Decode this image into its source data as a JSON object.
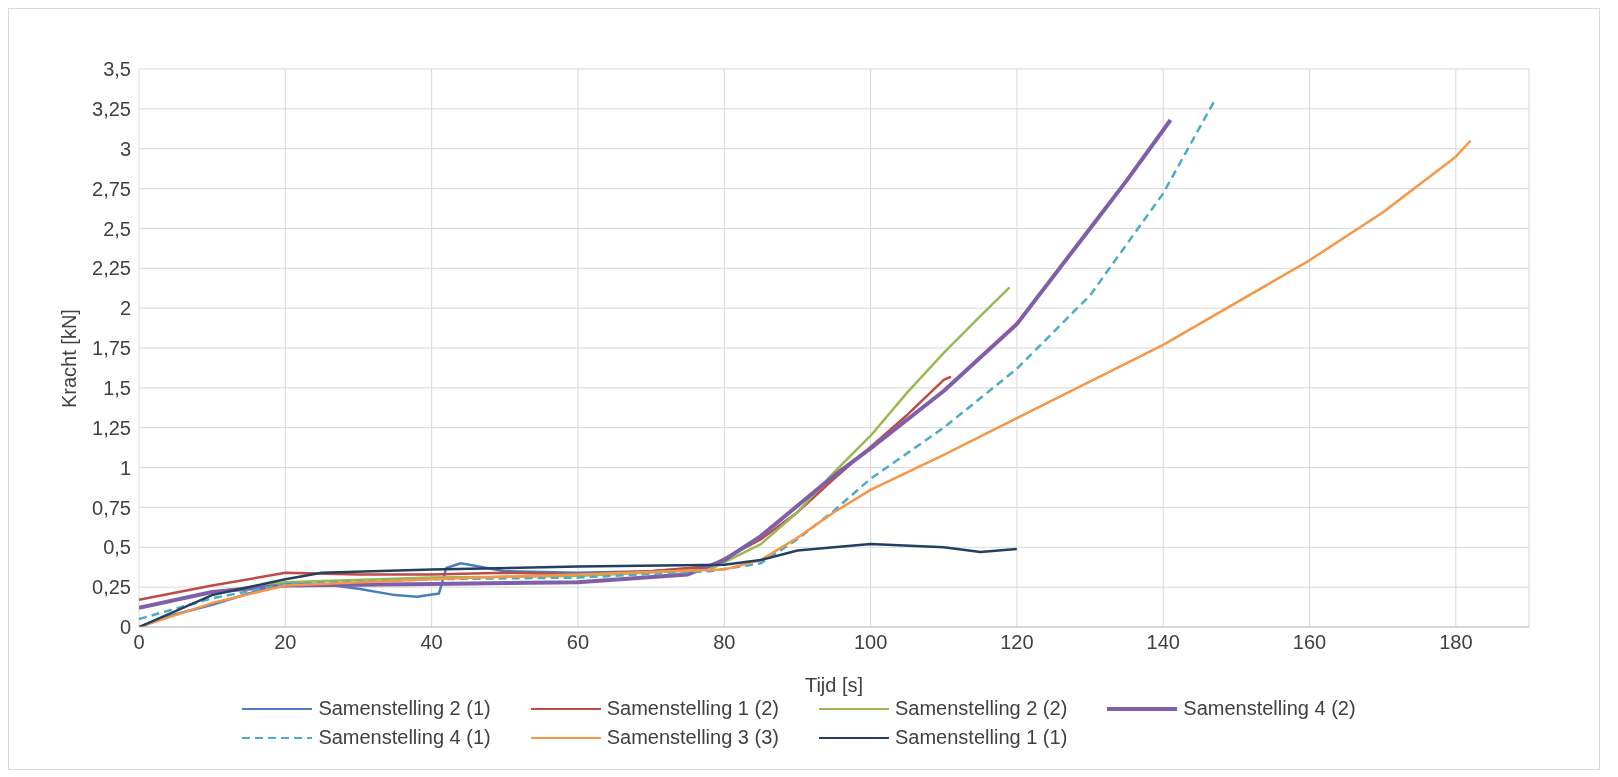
{
  "chart_data": {
    "type": "line",
    "xlabel": "Tijd [s]",
    "ylabel": "Kracht  [kN]",
    "xlim": [
      0,
      190
    ],
    "xticks": [
      0,
      20,
      40,
      60,
      80,
      100,
      120,
      140,
      160,
      180
    ],
    "ylim": [
      0,
      3.5
    ],
    "yticks": [
      0,
      {
        "value": 0.25,
        "label": "0,25"
      },
      {
        "value": 0.5,
        "label": "0,5"
      },
      {
        "value": 0.75,
        "label": "0,75"
      },
      1,
      {
        "value": 1.25,
        "label": "1,25"
      },
      {
        "value": 1.5,
        "label": "1,5"
      },
      {
        "value": 1.75,
        "label": "1,75"
      },
      2,
      {
        "value": 2.25,
        "label": "2,25"
      },
      {
        "value": 2.5,
        "label": "2,5"
      },
      {
        "value": 2.75,
        "label": "2,75"
      },
      3,
      {
        "value": 3.25,
        "label": "3,25"
      },
      {
        "value": 3.5,
        "label": "3,5"
      }
    ],
    "grid": true,
    "legend": "bottom",
    "marker": "none",
    "series": [
      {
        "name": "Samenstelling 2 (1)",
        "color": "#4a7ebb",
        "line_style": "solid",
        "x": [
          0,
          5,
          10,
          15,
          20,
          25,
          30,
          35,
          38,
          41,
          42,
          44,
          50,
          60,
          70,
          78
        ],
        "values": [
          0,
          0.08,
          0.14,
          0.21,
          0.27,
          0.27,
          0.24,
          0.2,
          0.19,
          0.21,
          0.37,
          0.4,
          0.35,
          0.34,
          0.35,
          0.38
        ]
      },
      {
        "name": "Samenstelling 1 (2)",
        "color": "#be4b48",
        "line_style": "solid",
        "x": [
          0,
          10,
          20,
          30,
          40,
          50,
          60,
          70,
          78,
          85,
          90,
          95,
          100,
          105,
          110,
          111
        ],
        "values": [
          0.17,
          0.26,
          0.34,
          0.33,
          0.33,
          0.34,
          0.33,
          0.35,
          0.38,
          0.55,
          0.72,
          0.93,
          1.13,
          1.33,
          1.55,
          1.57
        ]
      },
      {
        "name": "Samenstelling 2 (2)",
        "color": "#98b954",
        "line_style": "solid",
        "x": [
          0,
          10,
          20,
          40,
          60,
          78,
          85,
          90,
          95,
          100,
          105,
          110,
          115,
          119
        ],
        "values": [
          0.12,
          0.22,
          0.28,
          0.31,
          0.32,
          0.36,
          0.52,
          0.72,
          0.97,
          1.2,
          1.47,
          1.72,
          1.95,
          2.13
        ]
      },
      {
        "name": "Samenstelling 4 (2)",
        "color": "#7f60a8",
        "line_style": "solid",
        "x": [
          0,
          10,
          20,
          40,
          60,
          75,
          80,
          85,
          90,
          95,
          100,
          110,
          120,
          130,
          135,
          141
        ],
        "values": [
          0.12,
          0.22,
          0.26,
          0.27,
          0.28,
          0.33,
          0.42,
          0.57,
          0.76,
          0.95,
          1.12,
          1.48,
          1.9,
          2.5,
          2.8,
          3.18
        ]
      },
      {
        "name": "Samenstelling 4 (1)",
        "color": "#4bacc6",
        "line_style": "dashed",
        "x": [
          0,
          10,
          20,
          40,
          60,
          78,
          85,
          90,
          95,
          100,
          110,
          120,
          130,
          140,
          147
        ],
        "values": [
          0.05,
          0.18,
          0.27,
          0.3,
          0.31,
          0.35,
          0.4,
          0.55,
          0.73,
          0.93,
          1.25,
          1.62,
          2.08,
          2.72,
          3.3
        ]
      },
      {
        "name": "Samenstelling 3 (3)",
        "color": "#f79646",
        "line_style": "solid",
        "x": [
          0,
          10,
          20,
          40,
          60,
          80,
          85,
          90,
          95,
          100,
          110,
          120,
          140,
          160,
          170,
          180,
          182
        ],
        "values": [
          0,
          0.15,
          0.26,
          0.3,
          0.33,
          0.36,
          0.42,
          0.56,
          0.72,
          0.86,
          1.08,
          1.31,
          1.77,
          2.3,
          2.6,
          2.95,
          3.05
        ]
      },
      {
        "name": "Samenstelling 1 (1)",
        "color": "#243f60",
        "line_style": "solid",
        "x": [
          0,
          10,
          20,
          25,
          40,
          60,
          80,
          85,
          90,
          100,
          110,
          115,
          120
        ],
        "values": [
          0,
          0.2,
          0.3,
          0.34,
          0.36,
          0.38,
          0.39,
          0.42,
          0.48,
          0.52,
          0.5,
          0.47,
          0.49
        ]
      }
    ]
  }
}
